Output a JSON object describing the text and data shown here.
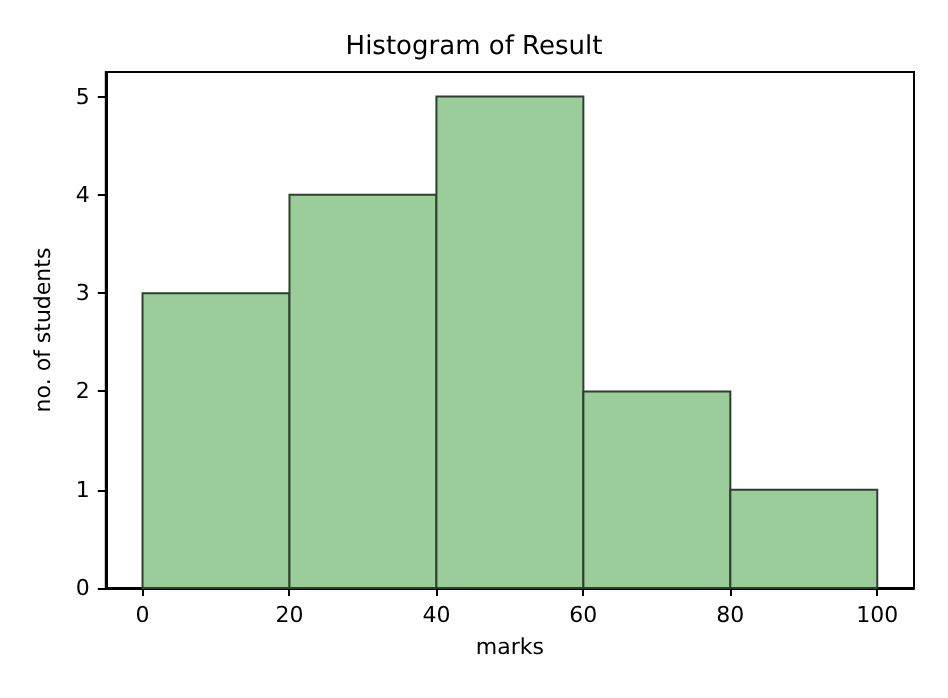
{
  "chart_data": {
    "type": "histogram",
    "title": "Histogram of Result",
    "xlabel": "marks",
    "ylabel": "no. of students",
    "bins": [
      0,
      20,
      40,
      60,
      80,
      100
    ],
    "values": [
      3,
      4,
      5,
      2,
      1
    ],
    "color": "#9acd9a",
    "xlim": [
      -5,
      105
    ],
    "xticks": [
      0,
      20,
      40,
      60,
      80,
      100
    ],
    "ylim": [
      0,
      5.25
    ],
    "yticks": [
      0,
      1,
      2,
      3,
      4,
      5
    ],
    "grid": false
  }
}
